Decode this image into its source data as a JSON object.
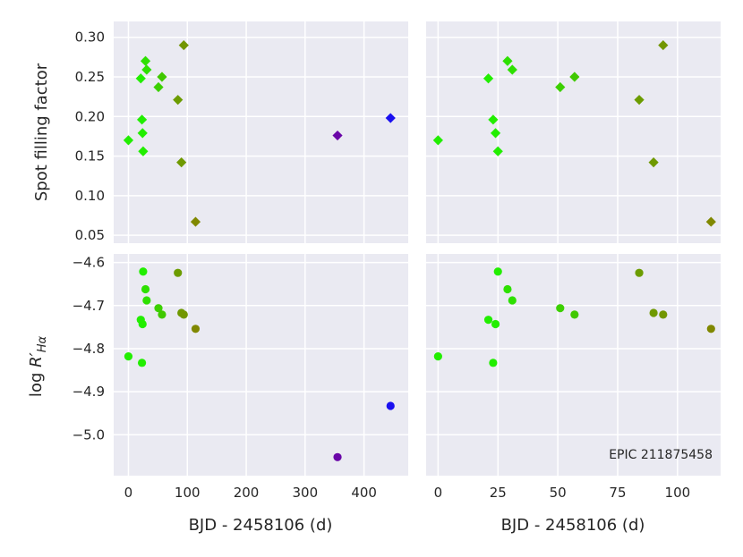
{
  "chart_data": {
    "type": "scatter",
    "colors": {
      "panel_background": "#eaeaf2",
      "grid": "#ffffff",
      "text": "#262626"
    },
    "grid": true,
    "annotation": "EPIC 211875458",
    "axes": {
      "x_wide": {
        "label": "BJD - 2458106 (d)",
        "range": [
          -25,
          475
        ],
        "ticks": [
          0,
          100,
          200,
          300,
          400
        ],
        "tick_labels": [
          "0",
          "100",
          "200",
          "300",
          "400"
        ]
      },
      "x_zoom": {
        "label": "BJD - 2458106 (d)",
        "range": [
          -5,
          118
        ],
        "ticks": [
          0,
          25,
          50,
          75,
          100
        ],
        "tick_labels": [
          "0",
          "25",
          "50",
          "75",
          "100"
        ]
      },
      "y_spot": {
        "label": "Spot filling factor",
        "range": [
          0.04,
          0.32
        ],
        "ticks": [
          0.05,
          0.1,
          0.15,
          0.2,
          0.25,
          0.3
        ],
        "tick_labels": [
          "0.05",
          "0.10",
          "0.15",
          "0.20",
          "0.25",
          "0.30"
        ]
      },
      "y_rha": {
        "label_prefix": "log ",
        "label_var": "R′",
        "label_sub": "Hα",
        "range": [
          -5.095,
          -4.58
        ],
        "ticks": [
          -4.6,
          -4.7,
          -4.8,
          -4.9,
          -5.0
        ],
        "tick_labels": [
          "−4.6",
          "−4.7",
          "−4.8",
          "−4.9",
          "−5.0"
        ]
      }
    },
    "panels": [
      {
        "id": "top-left",
        "x_axis": "x_wide",
        "y_axis": "y_spot",
        "marker": "diamond",
        "points": [
          {
            "x": 0,
            "y": 0.17,
            "color": "#22ee00"
          },
          {
            "x": 21,
            "y": 0.248,
            "color": "#22ee00"
          },
          {
            "x": 23,
            "y": 0.196,
            "color": "#22ee00"
          },
          {
            "x": 24,
            "y": 0.179,
            "color": "#22ee00"
          },
          {
            "x": 25,
            "y": 0.156,
            "color": "#22ee00"
          },
          {
            "x": 29,
            "y": 0.27,
            "color": "#2ee000"
          },
          {
            "x": 31,
            "y": 0.259,
            "color": "#2ee000"
          },
          {
            "x": 51,
            "y": 0.237,
            "color": "#3cd000"
          },
          {
            "x": 57,
            "y": 0.25,
            "color": "#40c800"
          },
          {
            "x": 84,
            "y": 0.221,
            "color": "#6c9c00"
          },
          {
            "x": 90,
            "y": 0.142,
            "color": "#6f9900"
          },
          {
            "x": 94,
            "y": 0.29,
            "color": "#729600"
          },
          {
            "x": 114,
            "y": 0.067,
            "color": "#808800"
          },
          {
            "x": 355,
            "y": 0.176,
            "color": "#6a06a8"
          },
          {
            "x": 445,
            "y": 0.198,
            "color": "#1a10f0"
          }
        ]
      },
      {
        "id": "top-right",
        "x_axis": "x_zoom",
        "y_axis": "y_spot",
        "marker": "diamond",
        "points": [
          {
            "x": 0,
            "y": 0.17,
            "color": "#22ee00"
          },
          {
            "x": 21,
            "y": 0.248,
            "color": "#22ee00"
          },
          {
            "x": 23,
            "y": 0.196,
            "color": "#22ee00"
          },
          {
            "x": 24,
            "y": 0.179,
            "color": "#22ee00"
          },
          {
            "x": 25,
            "y": 0.156,
            "color": "#22ee00"
          },
          {
            "x": 29,
            "y": 0.27,
            "color": "#2ee000"
          },
          {
            "x": 31,
            "y": 0.259,
            "color": "#2ee000"
          },
          {
            "x": 51,
            "y": 0.237,
            "color": "#3cd000"
          },
          {
            "x": 57,
            "y": 0.25,
            "color": "#40c800"
          },
          {
            "x": 84,
            "y": 0.221,
            "color": "#6c9c00"
          },
          {
            "x": 90,
            "y": 0.142,
            "color": "#6f9900"
          },
          {
            "x": 94,
            "y": 0.29,
            "color": "#729600"
          },
          {
            "x": 114,
            "y": 0.067,
            "color": "#808800"
          }
        ]
      },
      {
        "id": "bottom-left",
        "x_axis": "x_wide",
        "y_axis": "y_rha",
        "marker": "circle",
        "points": [
          {
            "x": 0,
            "y": -4.818,
            "color": "#22ee00"
          },
          {
            "x": 21,
            "y": -4.733,
            "color": "#22ee00"
          },
          {
            "x": 23,
            "y": -4.833,
            "color": "#22ee00"
          },
          {
            "x": 24,
            "y": -4.743,
            "color": "#22ee00"
          },
          {
            "x": 25,
            "y": -4.621,
            "color": "#22ee00"
          },
          {
            "x": 29,
            "y": -4.662,
            "color": "#2ee000"
          },
          {
            "x": 31,
            "y": -4.688,
            "color": "#2ee000"
          },
          {
            "x": 51,
            "y": -4.706,
            "color": "#3cd000"
          },
          {
            "x": 57,
            "y": -4.721,
            "color": "#40c800"
          },
          {
            "x": 84,
            "y": -4.624,
            "color": "#6c9c00"
          },
          {
            "x": 90,
            "y": -4.717,
            "color": "#6f9900"
          },
          {
            "x": 94,
            "y": -4.721,
            "color": "#729600"
          },
          {
            "x": 114,
            "y": -4.754,
            "color": "#808800"
          },
          {
            "x": 355,
            "y": -5.052,
            "color": "#6a06a8"
          },
          {
            "x": 445,
            "y": -4.933,
            "color": "#1a10f0"
          }
        ]
      },
      {
        "id": "bottom-right",
        "x_axis": "x_zoom",
        "y_axis": "y_rha",
        "marker": "circle",
        "points": [
          {
            "x": 0,
            "y": -4.818,
            "color": "#22ee00"
          },
          {
            "x": 21,
            "y": -4.733,
            "color": "#22ee00"
          },
          {
            "x": 23,
            "y": -4.833,
            "color": "#22ee00"
          },
          {
            "x": 24,
            "y": -4.743,
            "color": "#22ee00"
          },
          {
            "x": 25,
            "y": -4.621,
            "color": "#22ee00"
          },
          {
            "x": 29,
            "y": -4.662,
            "color": "#2ee000"
          },
          {
            "x": 31,
            "y": -4.688,
            "color": "#2ee000"
          },
          {
            "x": 51,
            "y": -4.706,
            "color": "#3cd000"
          },
          {
            "x": 57,
            "y": -4.721,
            "color": "#40c800"
          },
          {
            "x": 84,
            "y": -4.624,
            "color": "#6c9c00"
          },
          {
            "x": 90,
            "y": -4.717,
            "color": "#6f9900"
          },
          {
            "x": 94,
            "y": -4.721,
            "color": "#729600"
          },
          {
            "x": 114,
            "y": -4.754,
            "color": "#808800"
          }
        ]
      }
    ]
  }
}
